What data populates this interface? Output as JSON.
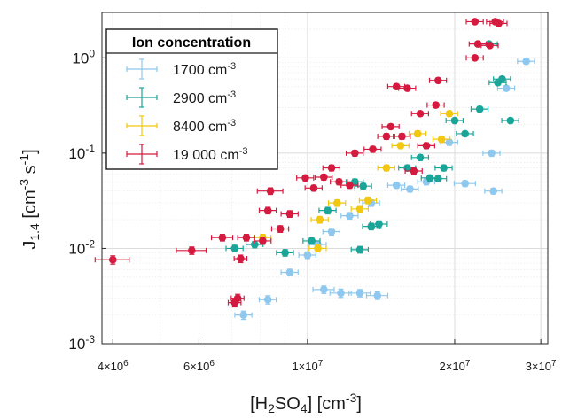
{
  "chart_data": {
    "type": "scatter",
    "title": "",
    "x_scale": "log",
    "y_scale": "log",
    "xlim": [
      3800000,
      31000000
    ],
    "ylim": [
      0.001,
      3
    ],
    "grid": true,
    "legend_position": "top-left",
    "xlabel": {
      "base": "[H",
      "sub1": "2",
      "mid": "SO",
      "sub2": "4",
      "end": "] [cm",
      "sup": "-3",
      "close": "]"
    },
    "ylabel": {
      "base": "J",
      "sub": "1.4",
      "mid": " [cm",
      "sup1": "-3",
      "s": " s",
      "sup2": "-1",
      "close": "]"
    },
    "x_ticks": [
      {
        "value": 4000000,
        "mant": "4",
        "exp": "6"
      },
      {
        "value": 6000000,
        "mant": "6",
        "exp": "6"
      },
      {
        "value": 10000000,
        "mant": "1",
        "exp": "7"
      },
      {
        "value": 20000000,
        "mant": "2",
        "exp": "7"
      },
      {
        "value": 30000000,
        "mant": "3",
        "exp": "7"
      }
    ],
    "y_ticks": [
      {
        "value": 0.001,
        "exp": "-3"
      },
      {
        "value": 0.01,
        "exp": "-2"
      },
      {
        "value": 0.1,
        "exp": "-1"
      },
      {
        "value": 1,
        "exp": "0"
      }
    ],
    "legend_title": "Ion concentration",
    "series": [
      {
        "name": "1700 cm",
        "unit_exp": "-3",
        "color": "#8ec8ee",
        "points": [
          {
            "x": 7400000,
            "y": 0.002,
            "xe": 0.04,
            "ye": 0.1
          },
          {
            "x": 8300000,
            "y": 0.0029,
            "xe": 0.04,
            "ye": 0.1
          },
          {
            "x": 10800000,
            "y": 0.0037,
            "xe": 0.05,
            "ye": 0.09
          },
          {
            "x": 11700000,
            "y": 0.0034,
            "xe": 0.05,
            "ye": 0.1
          },
          {
            "x": 12800000,
            "y": 0.0034,
            "xe": 0.05,
            "ye": 0.09
          },
          {
            "x": 13900000,
            "y": 0.0032,
            "xe": 0.05,
            "ye": 0.09
          },
          {
            "x": 9200000,
            "y": 0.0056,
            "xe": 0.04,
            "ye": 0.08
          },
          {
            "x": 10000000,
            "y": 0.0085,
            "xe": 0.04,
            "ye": 0.08
          },
          {
            "x": 10500000,
            "y": 0.011,
            "xe": 0.04,
            "ye": 0.08
          },
          {
            "x": 11200000,
            "y": 0.015,
            "xe": 0.04,
            "ye": 0.08
          },
          {
            "x": 12200000,
            "y": 0.022,
            "xe": 0.04,
            "ye": 0.08
          },
          {
            "x": 13500000,
            "y": 0.03,
            "xe": 0.04,
            "ye": 0.08
          },
          {
            "x": 15200000,
            "y": 0.046,
            "xe": 0.04,
            "ye": 0.07
          },
          {
            "x": 16200000,
            "y": 0.042,
            "xe": 0.04,
            "ye": 0.07
          },
          {
            "x": 17500000,
            "y": 0.05,
            "xe": 0.04,
            "ye": 0.07
          },
          {
            "x": 21000000,
            "y": 0.048,
            "xe": 0.05,
            "ye": 0.07
          },
          {
            "x": 23800000,
            "y": 0.1,
            "xe": 0.04,
            "ye": 0.07
          },
          {
            "x": 24000000,
            "y": 0.04,
            "xe": 0.04,
            "ye": 0.07
          },
          {
            "x": 25500000,
            "y": 0.48,
            "xe": 0.04,
            "ye": 0.06
          },
          {
            "x": 28000000,
            "y": 0.92,
            "xe": 0.04,
            "ye": 0.06
          },
          {
            "x": 19500000,
            "y": 0.13,
            "xe": 0.04,
            "ye": 0.07
          }
        ]
      },
      {
        "name": "2900 cm",
        "unit_exp": "-3",
        "color": "#1aa598",
        "points": [
          {
            "x": 7100000,
            "y": 0.01,
            "xe": 0.04,
            "ye": 0.08
          },
          {
            "x": 7800000,
            "y": 0.011,
            "xe": 0.04,
            "ye": 0.08
          },
          {
            "x": 9000000,
            "y": 0.009,
            "xe": 0.04,
            "ye": 0.08
          },
          {
            "x": 10200000,
            "y": 0.012,
            "xe": 0.04,
            "ye": 0.08
          },
          {
            "x": 11000000,
            "y": 0.025,
            "xe": 0.04,
            "ye": 0.08
          },
          {
            "x": 12500000,
            "y": 0.05,
            "xe": 0.04,
            "ye": 0.07
          },
          {
            "x": 13000000,
            "y": 0.045,
            "xe": 0.04,
            "ye": 0.07
          },
          {
            "x": 12800000,
            "y": 0.0097,
            "xe": 0.04,
            "ye": 0.08
          },
          {
            "x": 13500000,
            "y": 0.017,
            "xe": 0.04,
            "ye": 0.08
          },
          {
            "x": 14000000,
            "y": 0.018,
            "xe": 0.04,
            "ye": 0.08
          },
          {
            "x": 16000000,
            "y": 0.07,
            "xe": 0.04,
            "ye": 0.07
          },
          {
            "x": 17000000,
            "y": 0.09,
            "xe": 0.04,
            "ye": 0.07
          },
          {
            "x": 17800000,
            "y": 0.055,
            "xe": 0.04,
            "ye": 0.07
          },
          {
            "x": 18500000,
            "y": 0.054,
            "xe": 0.04,
            "ye": 0.07
          },
          {
            "x": 19000000,
            "y": 0.07,
            "xe": 0.04,
            "ye": 0.07
          },
          {
            "x": 20000000,
            "y": 0.22,
            "xe": 0.04,
            "ye": 0.06
          },
          {
            "x": 21000000,
            "y": 0.16,
            "xe": 0.04,
            "ye": 0.06
          },
          {
            "x": 22500000,
            "y": 0.29,
            "xe": 0.04,
            "ye": 0.06
          },
          {
            "x": 24500000,
            "y": 0.55,
            "xe": 0.04,
            "ye": 0.06
          },
          {
            "x": 25000000,
            "y": 0.6,
            "xe": 0.04,
            "ye": 0.06
          },
          {
            "x": 26000000,
            "y": 0.22,
            "xe": 0.04,
            "ye": 0.06
          },
          {
            "x": 23500000,
            "y": 1.4,
            "xe": 0.04,
            "ye": 0.05
          }
        ]
      },
      {
        "name": "8400 cm",
        "unit_exp": "-3",
        "color": "#f2c712",
        "points": [
          {
            "x": 8100000,
            "y": 0.013,
            "xe": 0.04,
            "ye": 0.08
          },
          {
            "x": 10500000,
            "y": 0.01,
            "xe": 0.04,
            "ye": 0.08
          },
          {
            "x": 10600000,
            "y": 0.02,
            "xe": 0.04,
            "ye": 0.08
          },
          {
            "x": 11500000,
            "y": 0.03,
            "xe": 0.04,
            "ye": 0.08
          },
          {
            "x": 12800000,
            "y": 0.026,
            "xe": 0.04,
            "ye": 0.08
          },
          {
            "x": 13300000,
            "y": 0.032,
            "xe": 0.04,
            "ye": 0.08
          },
          {
            "x": 14500000,
            "y": 0.07,
            "xe": 0.04,
            "ye": 0.07
          },
          {
            "x": 15500000,
            "y": 0.12,
            "xe": 0.04,
            "ye": 0.07
          },
          {
            "x": 16800000,
            "y": 0.16,
            "xe": 0.04,
            "ye": 0.07
          },
          {
            "x": 18800000,
            "y": 0.14,
            "xe": 0.04,
            "ye": 0.07
          },
          {
            "x": 19500000,
            "y": 0.26,
            "xe": 0.04,
            "ye": 0.06
          }
        ]
      },
      {
        "name": "19 000 cm",
        "unit_exp": "-3",
        "color": "#d51a3f",
        "points": [
          {
            "x": 4000000,
            "y": 0.0076,
            "xe": 0.08,
            "ye": 0.1
          },
          {
            "x": 5800000,
            "y": 0.0095,
            "xe": 0.07,
            "ye": 0.09
          },
          {
            "x": 6700000,
            "y": 0.013,
            "xe": 0.05,
            "ye": 0.08
          },
          {
            "x": 7100000,
            "y": 0.0027,
            "xe": 0.03,
            "ye": 0.1
          },
          {
            "x": 7200000,
            "y": 0.003,
            "xe": 0.03,
            "ye": 0.1
          },
          {
            "x": 7300000,
            "y": 0.0078,
            "xe": 0.03,
            "ye": 0.09
          },
          {
            "x": 7500000,
            "y": 0.013,
            "xe": 0.04,
            "ye": 0.08
          },
          {
            "x": 8100000,
            "y": 0.012,
            "xe": 0.04,
            "ye": 0.08
          },
          {
            "x": 8300000,
            "y": 0.025,
            "xe": 0.04,
            "ye": 0.08
          },
          {
            "x": 8400000,
            "y": 0.04,
            "xe": 0.06,
            "ye": 0.08
          },
          {
            "x": 8800000,
            "y": 0.016,
            "xe": 0.04,
            "ye": 0.08
          },
          {
            "x": 9200000,
            "y": 0.023,
            "xe": 0.04,
            "ye": 0.08
          },
          {
            "x": 9900000,
            "y": 0.055,
            "xe": 0.04,
            "ye": 0.07
          },
          {
            "x": 10300000,
            "y": 0.043,
            "xe": 0.04,
            "ye": 0.07
          },
          {
            "x": 10800000,
            "y": 0.056,
            "xe": 0.04,
            "ye": 0.07
          },
          {
            "x": 11200000,
            "y": 0.07,
            "xe": 0.04,
            "ye": 0.07
          },
          {
            "x": 11600000,
            "y": 0.05,
            "xe": 0.04,
            "ye": 0.07
          },
          {
            "x": 12200000,
            "y": 0.046,
            "xe": 0.04,
            "ye": 0.07
          },
          {
            "x": 12500000,
            "y": 0.1,
            "xe": 0.04,
            "ye": 0.07
          },
          {
            "x": 13600000,
            "y": 0.11,
            "xe": 0.04,
            "ye": 0.07
          },
          {
            "x": 14500000,
            "y": 0.15,
            "xe": 0.04,
            "ye": 0.07
          },
          {
            "x": 14800000,
            "y": 0.19,
            "xe": 0.04,
            "ye": 0.06
          },
          {
            "x": 15200000,
            "y": 0.5,
            "xe": 0.04,
            "ye": 0.06
          },
          {
            "x": 16000000,
            "y": 0.48,
            "xe": 0.04,
            "ye": 0.06
          },
          {
            "x": 15600000,
            "y": 0.15,
            "xe": 0.04,
            "ye": 0.07
          },
          {
            "x": 17000000,
            "y": 0.26,
            "xe": 0.04,
            "ye": 0.06
          },
          {
            "x": 18300000,
            "y": 0.32,
            "xe": 0.04,
            "ye": 0.06
          },
          {
            "x": 18500000,
            "y": 0.58,
            "xe": 0.04,
            "ye": 0.06
          },
          {
            "x": 17500000,
            "y": 0.12,
            "xe": 0.04,
            "ye": 0.07
          },
          {
            "x": 16500000,
            "y": 0.065,
            "xe": 0.04,
            "ye": 0.07
          },
          {
            "x": 22000000,
            "y": 1.0,
            "xe": 0.04,
            "ye": 0.05
          },
          {
            "x": 22300000,
            "y": 1.4,
            "xe": 0.04,
            "ye": 0.05
          },
          {
            "x": 22000000,
            "y": 2.4,
            "xe": 0.04,
            "ye": 0.05
          },
          {
            "x": 23600000,
            "y": 1.35,
            "xe": 0.04,
            "ye": 0.05
          },
          {
            "x": 24200000,
            "y": 2.4,
            "xe": 0.04,
            "ye": 0.05
          },
          {
            "x": 24600000,
            "y": 2.3,
            "xe": 0.04,
            "ye": 0.05
          }
        ]
      }
    ]
  }
}
